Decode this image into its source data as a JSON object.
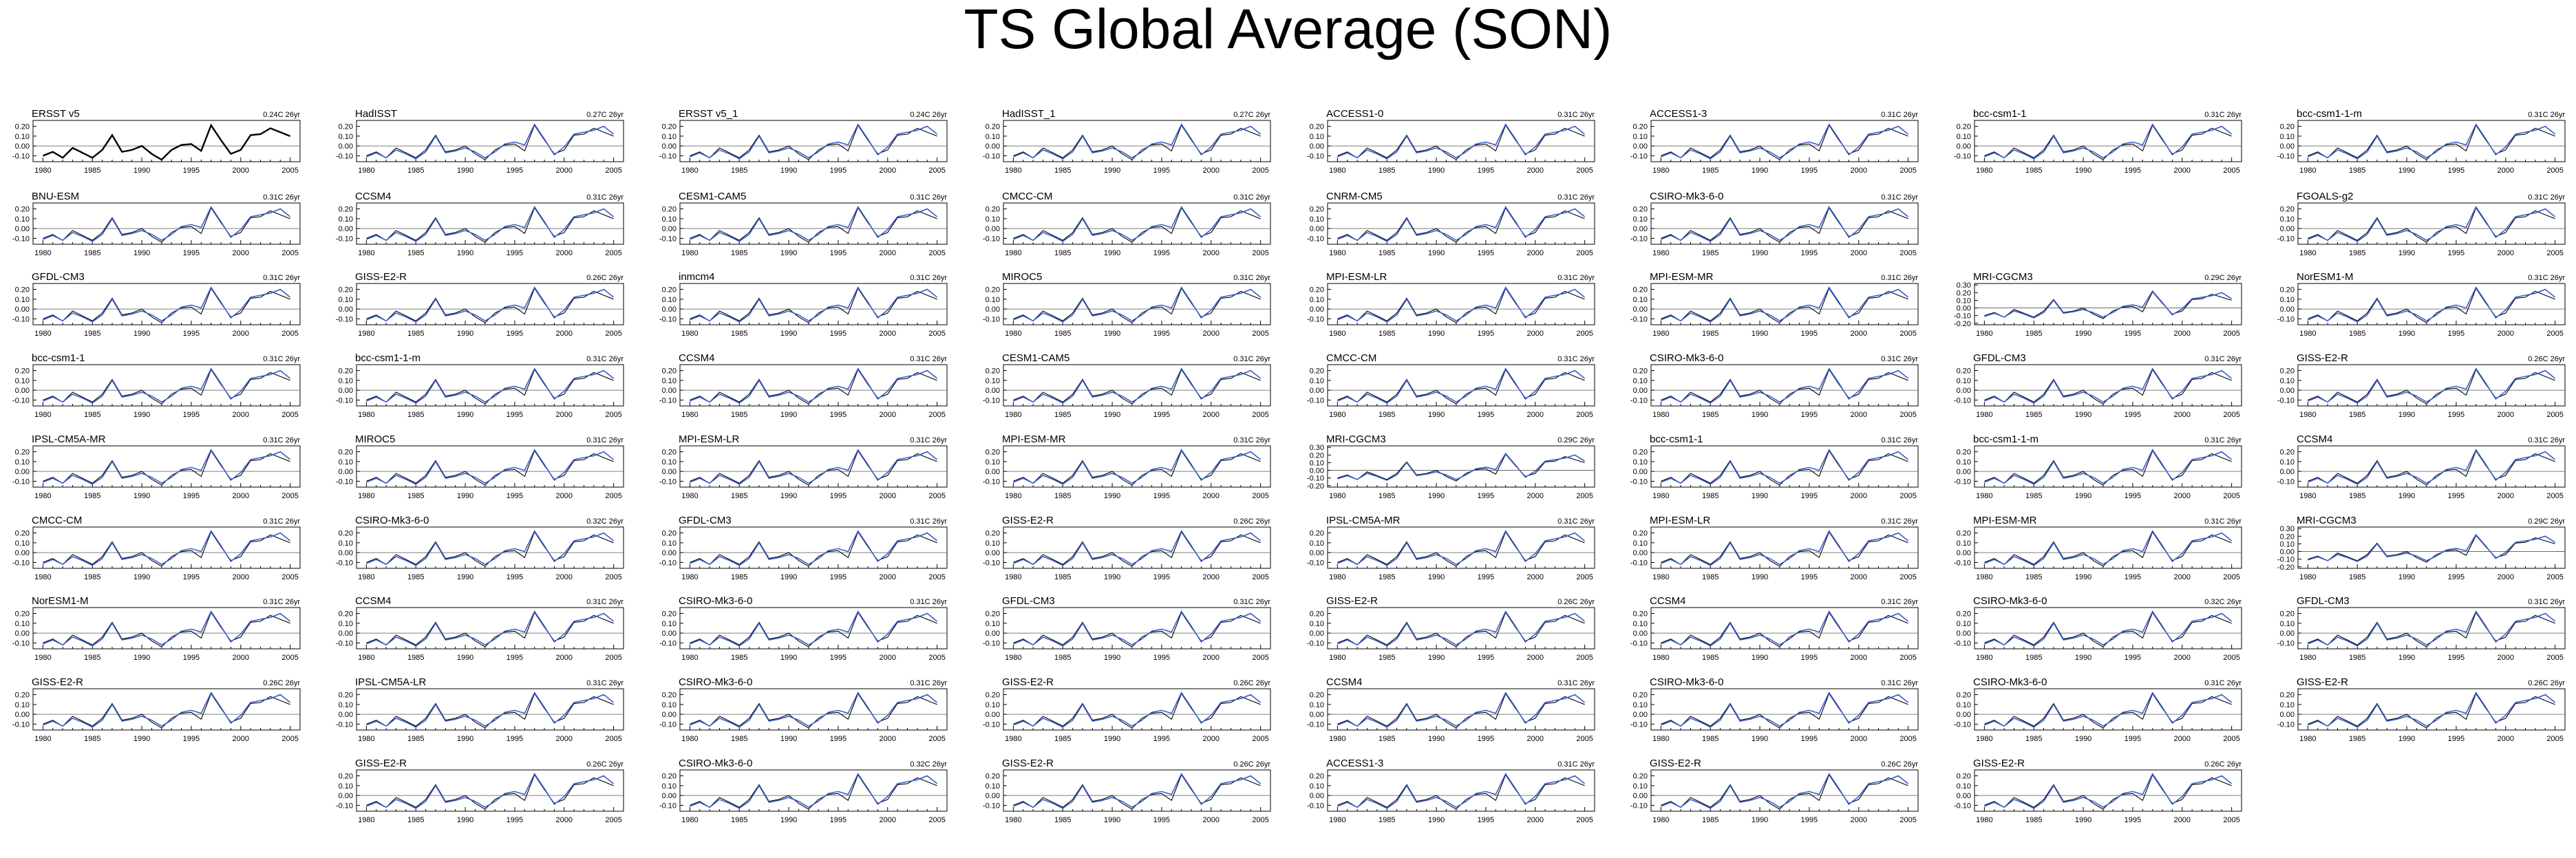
{
  "page": {
    "title": "TS Global Average (SON)"
  },
  "colors": {
    "observed": "#000000",
    "model": "#3a5fcd",
    "frame": "#000000",
    "zero_line": "#555555"
  },
  "axes": {
    "x_ticks": [
      "1980",
      "1985",
      "1990",
      "1995",
      "2000",
      "2005"
    ],
    "x_tick_values": [
      1980,
      1985,
      1990,
      1995,
      2000,
      2005
    ],
    "xlim": [
      1979,
      2006
    ],
    "y_ticks": [
      "0.20",
      "0.10",
      "0.00",
      "-0.10"
    ],
    "y_tick_values": [
      0.2,
      0.1,
      0.0,
      -0.1
    ],
    "y_ticks_wide": [
      "0.30",
      "0.20",
      "0.10",
      "0.00",
      "-0.10",
      "-0.20"
    ],
    "y_tick_values_wide": [
      0.3,
      0.2,
      0.1,
      0.0,
      -0.1,
      -0.2
    ],
    "ylim": [
      -0.16,
      0.26
    ],
    "ylim_wide": [
      -0.22,
      0.32
    ]
  },
  "chart_data": {
    "type": "line",
    "title": "TS Global Average (SON)",
    "grid": false,
    "x": [
      1980,
      1981,
      1982,
      1983,
      1984,
      1985,
      1986,
      1987,
      1988,
      1989,
      1990,
      1991,
      1992,
      1993,
      1994,
      1995,
      1996,
      1997,
      1998,
      1999,
      2000,
      2001,
      2002,
      2003,
      2004,
      2005
    ],
    "observed_series": [
      -0.1,
      -0.06,
      -0.12,
      -0.02,
      -0.07,
      -0.12,
      -0.04,
      0.11,
      -0.06,
      -0.04,
      0.0,
      -0.08,
      -0.14,
      -0.04,
      0.01,
      0.02,
      -0.05,
      0.21,
      0.06,
      -0.08,
      -0.04,
      0.11,
      0.12,
      0.18,
      0.14,
      0.1
    ],
    "model_series": [
      -0.11,
      -0.07,
      -0.12,
      -0.04,
      -0.08,
      -0.13,
      -0.06,
      0.1,
      -0.07,
      -0.05,
      -0.02,
      -0.06,
      -0.12,
      -0.06,
      0.02,
      0.04,
      0.01,
      0.22,
      0.07,
      -0.09,
      -0.01,
      0.12,
      0.14,
      0.16,
      0.2,
      0.12
    ],
    "panels": [
      {
        "label": "ERSST v5",
        "trend": "0.24C 26yr",
        "row": 0,
        "col": 0,
        "observed_only": true
      },
      {
        "label": "HadISST",
        "trend": "0.27C 26yr",
        "row": 0,
        "col": 1
      },
      {
        "label": "ERSST v5_1",
        "trend": "0.24C 26yr",
        "row": 0,
        "col": 2
      },
      {
        "label": "HadISST_1",
        "trend": "0.27C 26yr",
        "row": 0,
        "col": 3
      },
      {
        "label": "ACCESS1-0",
        "trend": "0.31C 26yr",
        "row": 0,
        "col": 4
      },
      {
        "label": "ACCESS1-3",
        "trend": "0.31C 26yr",
        "row": 0,
        "col": 5
      },
      {
        "label": "bcc-csm1-1",
        "trend": "0.31C 26yr",
        "row": 0,
        "col": 6
      },
      {
        "label": "bcc-csm1-1-m",
        "trend": "0.31C 26yr",
        "row": 0,
        "col": 7
      },
      {
        "label": "BNU-ESM",
        "trend": "0.31C 26yr",
        "row": 1,
        "col": 0
      },
      {
        "label": "CCSM4",
        "trend": "0.31C 26yr",
        "row": 1,
        "col": 1
      },
      {
        "label": "CESM1-CAM5",
        "trend": "0.31C 26yr",
        "row": 1,
        "col": 2
      },
      {
        "label": "CMCC-CM",
        "trend": "0.31C 26yr",
        "row": 1,
        "col": 3
      },
      {
        "label": "CNRM-CM5",
        "trend": "0.31C 26yr",
        "row": 1,
        "col": 4
      },
      {
        "label": "CSIRO-Mk3-6-0",
        "trend": "0.31C 26yr",
        "row": 1,
        "col": 5
      },
      {
        "label": "FGOALS-g2",
        "trend": "0.31C 26yr",
        "row": 1,
        "col": 7
      },
      {
        "label": "GFDL-CM3",
        "trend": "0.31C 26yr",
        "row": 2,
        "col": 0
      },
      {
        "label": "GISS-E2-R",
        "trend": "0.26C 26yr",
        "row": 2,
        "col": 1
      },
      {
        "label": "inmcm4",
        "trend": "0.31C 26yr",
        "row": 2,
        "col": 2
      },
      {
        "label": "MIROC5",
        "trend": "0.31C 26yr",
        "row": 2,
        "col": 3
      },
      {
        "label": "MPI-ESM-LR",
        "trend": "0.31C 26yr",
        "row": 2,
        "col": 4
      },
      {
        "label": "MPI-ESM-MR",
        "trend": "0.31C 26yr",
        "row": 2,
        "col": 5
      },
      {
        "label": "MRI-CGCM3",
        "trend": "0.29C 26yr",
        "row": 2,
        "col": 6,
        "wide": true
      },
      {
        "label": "NorESM1-M",
        "trend": "0.31C 26yr",
        "row": 2,
        "col": 7
      },
      {
        "label": "bcc-csm1-1",
        "trend": "0.31C 26yr",
        "row": 3,
        "col": 0
      },
      {
        "label": "bcc-csm1-1-m",
        "trend": "0.31C 26yr",
        "row": 3,
        "col": 1
      },
      {
        "label": "CCSM4",
        "trend": "0.31C 26yr",
        "row": 3,
        "col": 2
      },
      {
        "label": "CESM1-CAM5",
        "trend": "0.31C 26yr",
        "row": 3,
        "col": 3
      },
      {
        "label": "CMCC-CM",
        "trend": "0.31C 26yr",
        "row": 3,
        "col": 4
      },
      {
        "label": "CSIRO-Mk3-6-0",
        "trend": "0.31C 26yr",
        "row": 3,
        "col": 5
      },
      {
        "label": "GFDL-CM3",
        "trend": "0.31C 26yr",
        "row": 3,
        "col": 6
      },
      {
        "label": "GISS-E2-R",
        "trend": "0.26C 26yr",
        "row": 3,
        "col": 7
      },
      {
        "label": "IPSL-CM5A-MR",
        "trend": "0.31C 26yr",
        "row": 4,
        "col": 0
      },
      {
        "label": "MIROC5",
        "trend": "0.31C 26yr",
        "row": 4,
        "col": 1
      },
      {
        "label": "MPI-ESM-LR",
        "trend": "0.31C 26yr",
        "row": 4,
        "col": 2
      },
      {
        "label": "MPI-ESM-MR",
        "trend": "0.31C 26yr",
        "row": 4,
        "col": 3
      },
      {
        "label": "MRI-CGCM3",
        "trend": "0.29C 26yr",
        "row": 4,
        "col": 4,
        "wide": true
      },
      {
        "label": "bcc-csm1-1",
        "trend": "0.31C 26yr",
        "row": 4,
        "col": 5
      },
      {
        "label": "bcc-csm1-1-m",
        "trend": "0.31C 26yr",
        "row": 4,
        "col": 6
      },
      {
        "label": "CCSM4",
        "trend": "0.31C 26yr",
        "row": 4,
        "col": 7
      },
      {
        "label": "CMCC-CM",
        "trend": "0.31C 26yr",
        "row": 5,
        "col": 0
      },
      {
        "label": "CSIRO-Mk3-6-0",
        "trend": "0.32C 26yr",
        "row": 5,
        "col": 1
      },
      {
        "label": "GFDL-CM3",
        "trend": "0.31C 26yr",
        "row": 5,
        "col": 2
      },
      {
        "label": "GISS-E2-R",
        "trend": "0.26C 26yr",
        "row": 5,
        "col": 3
      },
      {
        "label": "IPSL-CM5A-MR",
        "trend": "0.31C 26yr",
        "row": 5,
        "col": 4
      },
      {
        "label": "MPI-ESM-LR",
        "trend": "0.31C 26yr",
        "row": 5,
        "col": 5
      },
      {
        "label": "MPI-ESM-MR",
        "trend": "0.31C 26yr",
        "row": 5,
        "col": 6
      },
      {
        "label": "MRI-CGCM3",
        "trend": "0.29C 26yr",
        "row": 5,
        "col": 7,
        "wide": true
      },
      {
        "label": "NorESM1-M",
        "trend": "0.31C 26yr",
        "row": 6,
        "col": 0
      },
      {
        "label": "CCSM4",
        "trend": "0.31C 26yr",
        "row": 6,
        "col": 1
      },
      {
        "label": "CSIRO-Mk3-6-0",
        "trend": "0.31C 26yr",
        "row": 6,
        "col": 2
      },
      {
        "label": "GFDL-CM3",
        "trend": "0.31C 26yr",
        "row": 6,
        "col": 3
      },
      {
        "label": "GISS-E2-R",
        "trend": "0.26C 26yr",
        "row": 6,
        "col": 4
      },
      {
        "label": "CCSM4",
        "trend": "0.31C 26yr",
        "row": 6,
        "col": 5
      },
      {
        "label": "CSIRO-Mk3-6-0",
        "trend": "0.32C 26yr",
        "row": 6,
        "col": 6
      },
      {
        "label": "GFDL-CM3",
        "trend": "0.31C 26yr",
        "row": 6,
        "col": 7
      },
      {
        "label": "GISS-E2-R",
        "trend": "0.26C 26yr",
        "row": 7,
        "col": 0
      },
      {
        "label": "IPSL-CM5A-LR",
        "trend": "0.31C 26yr",
        "row": 7,
        "col": 1
      },
      {
        "label": "CSIRO-Mk3-6-0",
        "trend": "0.31C 26yr",
        "row": 7,
        "col": 2
      },
      {
        "label": "GISS-E2-R",
        "trend": "0.26C 26yr",
        "row": 7,
        "col": 3
      },
      {
        "label": "CCSM4",
        "trend": "0.31C 26yr",
        "row": 7,
        "col": 4
      },
      {
        "label": "CSIRO-Mk3-6-0",
        "trend": "0.31C 26yr",
        "row": 7,
        "col": 5
      },
      {
        "label": "CSIRO-Mk3-6-0",
        "trend": "0.31C 26yr",
        "row": 7,
        "col": 6
      },
      {
        "label": "GISS-E2-R",
        "trend": "0.26C 26yr",
        "row": 7,
        "col": 7
      },
      {
        "label": "GISS-E2-R",
        "trend": "0.26C 26yr",
        "row": 8,
        "col": 1
      },
      {
        "label": "CSIRO-Mk3-6-0",
        "trend": "0.32C 26yr",
        "row": 8,
        "col": 2
      },
      {
        "label": "GISS-E2-R",
        "trend": "0.26C 26yr",
        "row": 8,
        "col": 3
      },
      {
        "label": "ACCESS1-3",
        "trend": "0.31C 26yr",
        "row": 8,
        "col": 4
      },
      {
        "label": "GISS-E2-R",
        "trend": "0.26C 26yr",
        "row": 8,
        "col": 5
      },
      {
        "label": "GISS-E2-R",
        "trend": "0.26C 26yr",
        "row": 8,
        "col": 6
      }
    ]
  }
}
